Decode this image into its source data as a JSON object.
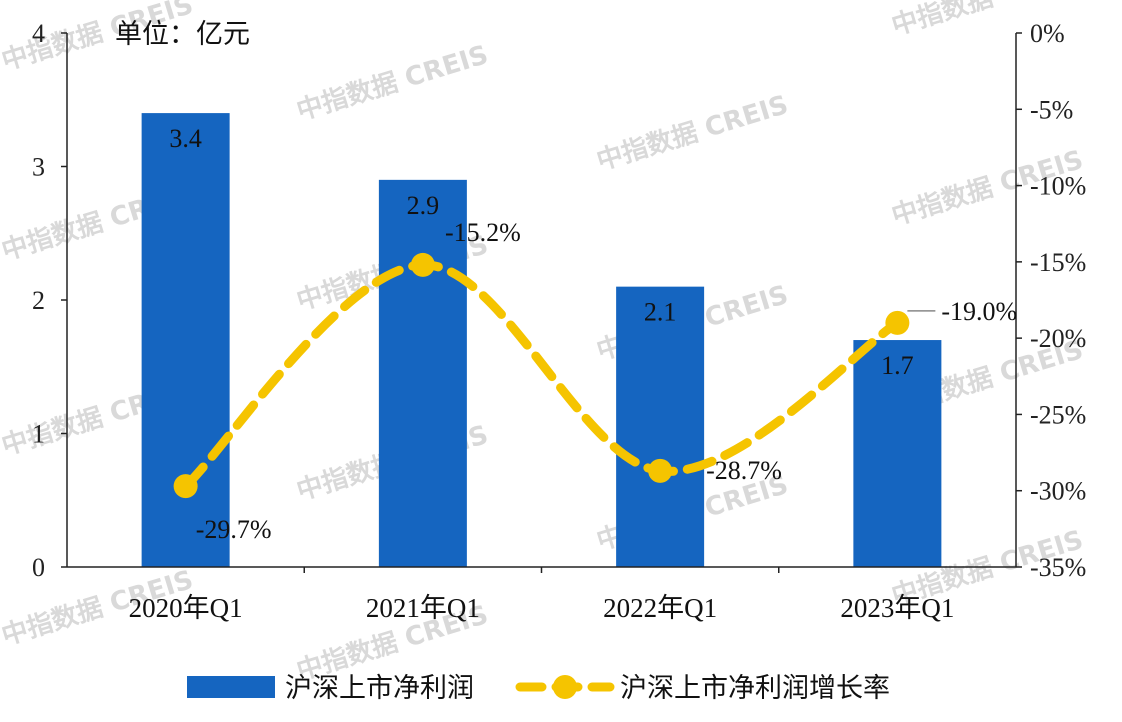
{
  "chart_data": {
    "type": "bar+line",
    "unit_label": "单位：亿元",
    "categories": [
      "2020年Q1",
      "2021年Q1",
      "2022年Q1",
      "2023年Q1"
    ],
    "series": [
      {
        "name": "沪深上市净利润",
        "type": "bar",
        "axis": "left",
        "values": [
          3.4,
          2.9,
          2.1,
          1.7
        ],
        "labels": [
          "3.4",
          "2.9",
          "2.1",
          "1.7"
        ],
        "color": "#1565c0"
      },
      {
        "name": "沪深上市净利润增长率",
        "type": "line",
        "style": "dashed-smooth",
        "axis": "right",
        "values": [
          -29.7,
          -15.2,
          -28.7,
          -19.0
        ],
        "labels": [
          "-29.7%",
          "-15.2%",
          "-28.7%",
          "-19.0%"
        ],
        "color": "#f5c400"
      }
    ],
    "left_axis": {
      "ylim": [
        0,
        4
      ],
      "ticks": [
        0,
        1,
        2,
        3,
        4
      ],
      "tick_labels": [
        "0",
        "1",
        "2",
        "3",
        "4"
      ]
    },
    "right_axis": {
      "ylim": [
        -35,
        0
      ],
      "ticks": [
        0,
        -5,
        -10,
        -15,
        -20,
        -25,
        -30,
        -35
      ],
      "tick_labels": [
        "0%",
        "-5%",
        "-10%",
        "-15%",
        "-20%",
        "-25%",
        "-30%",
        "-35%"
      ]
    },
    "legend": {
      "placement": "bottom"
    },
    "grid": false,
    "watermark": "中指数据 CREIS"
  }
}
